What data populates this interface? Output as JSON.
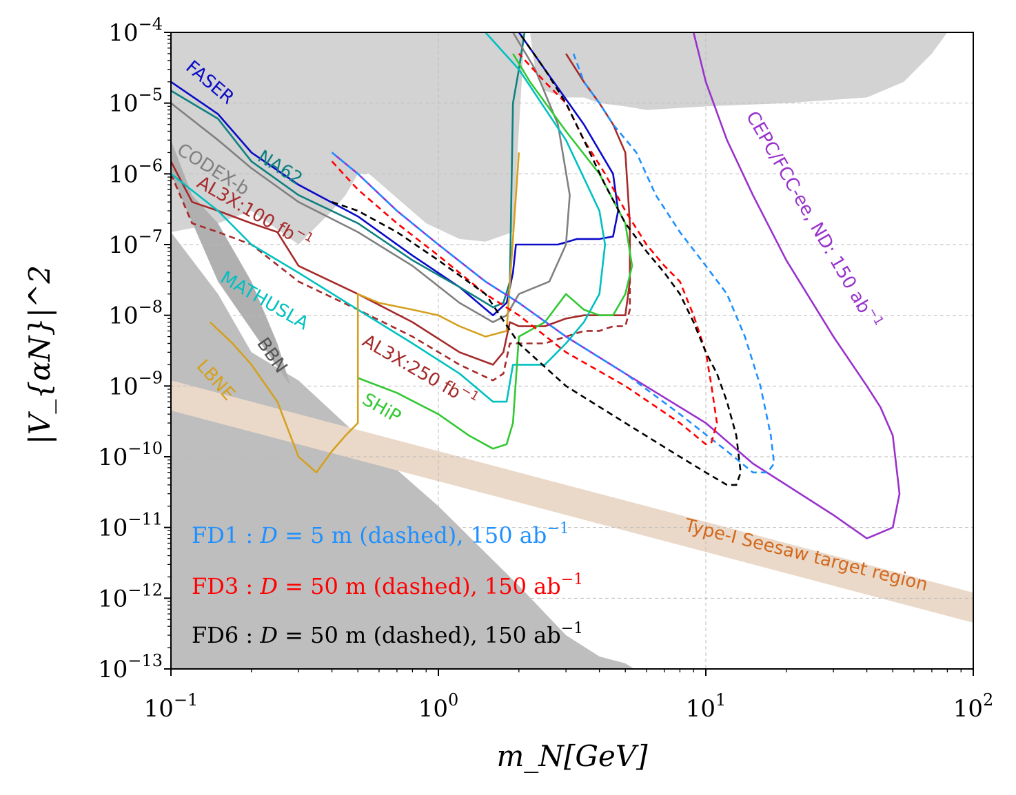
{
  "chart_data": {
    "type": "line",
    "title": "",
    "xlabel": "m_N[GeV]",
    "ylabel": "|V_{αN}|^2",
    "x_scale": "log",
    "y_scale": "log",
    "xlim": [
      0.1,
      100
    ],
    "ylim": [
      1e-13,
      0.0001
    ],
    "grid": true,
    "x_ticks": [
      {
        "base": "10",
        "exp": "−1",
        "value": 0.1
      },
      {
        "base": "10",
        "exp": "0",
        "value": 1
      },
      {
        "base": "10",
        "exp": "1",
        "value": 10
      },
      {
        "base": "10",
        "exp": "2",
        "value": 100
      }
    ],
    "y_ticks": [
      {
        "base": "10",
        "exp": "−4",
        "value": 0.0001
      },
      {
        "base": "10",
        "exp": "−5",
        "value": 1e-05
      },
      {
        "base": "10",
        "exp": "−6",
        "value": 1e-06
      },
      {
        "base": "10",
        "exp": "−7",
        "value": 1e-07
      },
      {
        "base": "10",
        "exp": "−8",
        "value": 1e-08
      },
      {
        "base": "10",
        "exp": "−9",
        "value": 1e-09
      },
      {
        "base": "10",
        "exp": "−10",
        "value": 1e-10
      },
      {
        "base": "10",
        "exp": "−11",
        "value": 1e-11
      },
      {
        "base": "10",
        "exp": "−12",
        "value": 1e-12
      },
      {
        "base": "10",
        "exp": "−13",
        "value": 1e-13
      }
    ],
    "regions": [
      {
        "name": "Excluded (upper)",
        "color": "#d3d3d3",
        "x": [
          0.1,
          0.1,
          0.15,
          0.2,
          0.3,
          0.4,
          0.45,
          0.5,
          0.55,
          0.9,
          1.2,
          1.5,
          1.9,
          2.1,
          2.2,
          2.3,
          2.5,
          3.0,
          3.5,
          4.0,
          5.0,
          6.0,
          10,
          20,
          40,
          55,
          70,
          80,
          100,
          100
        ],
        "y": [
          0.0001,
          1.5e-07,
          2e-07,
          3e-07,
          1e-07,
          3e-07,
          5e-07,
          1e-06,
          1e-06,
          2e-07,
          1.2e-07,
          1.1e-07,
          1.5e-07,
          0.0001,
          0.0001,
          3e-05,
          1.5e-05,
          1.2e-05,
          1.2e-05,
          1e-05,
          9e-06,
          8e-06,
          9e-06,
          1e-05,
          1.2e-05,
          2e-05,
          5e-05,
          0.0001,
          0.0001,
          0.0001
        ]
      },
      {
        "name": "Excluded (lower-left)",
        "color": "#bebebe",
        "x": [
          0.1,
          0.15,
          0.2,
          0.3,
          0.5,
          1.0,
          2.0,
          3.0,
          4.0,
          5.0,
          5.4,
          0.1
        ],
        "y": [
          1.5e-07,
          2e-08,
          3e-09,
          1.2e-09,
          2e-10,
          2e-11,
          1.5e-12,
          3e-13,
          1.5e-13,
          1.2e-13,
          1e-13,
          1e-13
        ]
      },
      {
        "name": "BBN",
        "color": "#b0b0b0",
        "x": [
          0.1,
          0.12,
          0.15,
          0.2,
          0.25,
          0.28,
          0.15,
          0.1
        ],
        "y": [
          3e-06,
          5e-07,
          2e-07,
          3e-08,
          4e-09,
          1e-09,
          3e-08,
          1e-06
        ]
      }
    ],
    "seesaw_band": {
      "label": "Type-I Seesaw target region",
      "color": "#ead9c9",
      "x": [
        0.1,
        100
      ],
      "y_upper": [
        1.2e-09,
        1.2e-12
      ],
      "y_lower": [
        4.5e-10,
        4.5e-13
      ]
    },
    "series": [
      {
        "name": "FASER",
        "label": "FASER",
        "color": "#0a0ac8",
        "dash": "solid",
        "x": [
          0.1,
          0.15,
          0.2,
          0.3,
          0.5,
          0.8,
          1.2,
          1.6,
          1.8,
          1.9,
          1.95,
          2.2,
          2.8,
          3.3,
          4.0,
          4.5,
          4.7,
          4.5,
          3.5,
          2.5,
          2.0
        ],
        "y": [
          2e-05,
          7e-06,
          2e-06,
          7e-07,
          2.5e-07,
          7e-08,
          2.5e-08,
          1e-08,
          1.5e-08,
          4e-08,
          1e-07,
          1e-07,
          1e-07,
          1.2e-07,
          1.2e-07,
          1.3e-07,
          3e-07,
          1e-06,
          5e-06,
          3e-05,
          0.0001
        ]
      },
      {
        "name": "NA62",
        "label": "NA62",
        "color": "#108080",
        "dash": "solid",
        "x": [
          0.1,
          0.15,
          0.2,
          0.3,
          0.5,
          0.8,
          1.2,
          1.6,
          1.75,
          1.85,
          1.9,
          2.0,
          2.1
        ],
        "y": [
          1.5e-05,
          6e-06,
          1.5e-06,
          5e-07,
          2e-07,
          6e-08,
          2.5e-08,
          1.3e-08,
          1.5e-08,
          3e-08,
          1e-05,
          3e-05,
          0.0001
        ]
      },
      {
        "name": "CODEX-b",
        "label": "CODEX-b",
        "color": "#808080",
        "dash": "solid",
        "x": [
          0.1,
          0.15,
          0.2,
          0.3,
          0.5,
          0.8,
          1.2,
          1.6,
          1.8,
          2.0,
          2.6,
          3.0,
          3.1,
          2.8,
          2.3,
          1.9
        ],
        "y": [
          1e-05,
          3e-06,
          1.2e-06,
          4e-07,
          1.5e-07,
          5e-08,
          1.5e-08,
          8e-09,
          1e-08,
          2e-08,
          3e-08,
          1e-07,
          5e-07,
          5e-06,
          3e-05,
          0.0001
        ]
      },
      {
        "name": "AL3X 100",
        "label": "AL3X:100 fb",
        "label_sup": "−1",
        "color": "#a52a2a",
        "dash": "solid",
        "x": [
          0.1,
          0.12,
          0.15,
          0.2,
          0.25,
          0.3,
          0.5,
          0.8,
          1.2,
          1.6,
          1.75,
          1.85,
          2.0,
          2.5,
          3.0,
          3.5,
          4.0,
          4.5,
          5.0,
          5.2,
          5.2,
          5.0,
          4.5,
          4.0,
          3.5,
          3.0
        ],
        "y": [
          1.5e-06,
          4e-07,
          3e-07,
          2e-07,
          1.5e-07,
          5e-08,
          2e-08,
          8e-09,
          3e-09,
          2e-09,
          3e-09,
          8e-09,
          7e-09,
          7e-09,
          9e-09,
          1e-08,
          1e-08,
          1e-08,
          1e-08,
          3e-08,
          2e-07,
          2e-06,
          5e-06,
          1e-05,
          2e-05,
          5e-05
        ]
      },
      {
        "name": "AL3X 250",
        "label": "AL3X:250 fb",
        "label_sup": "−1",
        "color": "#a52a2a",
        "dash": "dashed",
        "x": [
          0.1,
          0.12,
          0.15,
          0.2,
          0.3,
          0.5,
          0.8,
          1.2,
          1.6,
          1.75,
          1.85,
          2.0,
          2.5,
          3.0,
          3.5,
          4.0,
          4.5,
          5.0,
          5.2,
          5.2
        ],
        "y": [
          1e-06,
          2e-07,
          1.5e-07,
          1e-07,
          3e-08,
          1.2e-08,
          5e-09,
          2e-09,
          1.2e-09,
          1.5e-09,
          4e-09,
          4e-09,
          4e-09,
          5e-09,
          6e-09,
          6e-09,
          7e-09,
          7e-09,
          1.2e-08,
          8e-08
        ]
      },
      {
        "name": "MATHUSLA",
        "label": "MATHUSLA",
        "color": "#00c0c0",
        "dash": "solid",
        "x": [
          0.1,
          0.15,
          0.2,
          0.3,
          0.5,
          0.8,
          1.2,
          1.6,
          1.8,
          1.9,
          2.0,
          2.5,
          3.0,
          3.5,
          4.0,
          4.2,
          4.0,
          3.0,
          2.0,
          1.5
        ],
        "y": [
          1e-06,
          3e-07,
          1e-07,
          4e-08,
          1.2e-08,
          4e-09,
          1.5e-09,
          6e-10,
          6e-10,
          2e-09,
          2e-09,
          2e-09,
          4e-09,
          8e-09,
          2e-08,
          1e-07,
          3e-07,
          3e-06,
          3e-05,
          0.0001
        ]
      },
      {
        "name": "SHiP",
        "label": "SHiP",
        "color": "#32c832",
        "dash": "solid",
        "x": [
          0.5,
          0.7,
          1.0,
          1.3,
          1.6,
          1.8,
          1.9,
          2.0,
          2.5,
          3.0,
          3.5,
          4.0,
          4.5,
          5.0,
          5.3,
          5.0,
          4.0,
          3.0,
          2.2,
          1.9
        ],
        "y": [
          1.3e-09,
          8e-10,
          4e-10,
          2e-10,
          1.3e-10,
          1.5e-10,
          3e-10,
          5e-09,
          8e-09,
          2e-08,
          1.2e-08,
          1e-08,
          1e-08,
          2e-08,
          5e-08,
          2e-07,
          1e-06,
          4e-06,
          2e-05,
          5e-05
        ]
      },
      {
        "name": "LBNE",
        "label": "LBNE",
        "color": "#d4a020",
        "dash": "solid",
        "x": [
          0.14,
          0.17,
          0.2,
          0.25,
          0.3,
          0.35,
          0.4,
          0.45,
          0.5,
          0.5,
          0.6,
          0.8,
          1.0,
          1.2,
          1.5,
          1.8,
          2.0
        ],
        "y": [
          8e-09,
          4e-09,
          2e-09,
          6e-10,
          1e-10,
          6e-11,
          1.2e-10,
          2e-10,
          3e-10,
          2e-08,
          1.5e-08,
          1.2e-08,
          1e-08,
          7e-09,
          5e-09,
          6e-09,
          2e-06
        ]
      },
      {
        "name": "CEPC/FCC-ee ND",
        "label": "CEPC/FCC-ee, ND: 150 ab",
        "label_sup": "−1",
        "color": "#9932cc",
        "dash": "solid",
        "x": [
          0.4,
          0.5,
          0.7,
          1.0,
          1.5,
          2.0,
          3.0,
          5.0,
          10,
          15,
          20,
          30,
          40,
          50,
          53,
          50,
          45,
          40,
          30,
          20,
          15,
          12,
          10,
          9
        ],
        "y": [
          2e-06,
          1e-06,
          3e-07,
          1e-07,
          3e-08,
          1.5e-08,
          5e-09,
          1.5e-09,
          3e-10,
          8e-11,
          4e-11,
          1.5e-11,
          7e-12,
          1e-11,
          3e-11,
          2e-10,
          5e-10,
          1e-09,
          5e-09,
          6e-08,
          5e-07,
          3e-06,
          2e-05,
          0.0001
        ]
      },
      {
        "name": "FD1",
        "label": "FD1 : D = 5 m (dashed), 150 ab",
        "color": "#1e90ff",
        "dash": "dashed",
        "x": [
          0.4,
          0.5,
          0.7,
          1.0,
          1.5,
          2.0,
          3.0,
          5.0,
          8.0,
          12,
          15,
          17,
          18,
          17.5,
          16,
          14,
          12,
          10,
          8,
          6.5,
          5.5,
          4.5,
          4.0,
          3.5,
          3.2
        ],
        "y": [
          2e-06,
          1e-06,
          3e-07,
          1e-07,
          3e-08,
          1.5e-08,
          5e-09,
          1.5e-09,
          4e-10,
          1.2e-10,
          6e-11,
          6e-11,
          8e-11,
          2e-10,
          1e-09,
          5e-09,
          2e-08,
          5e-08,
          1.5e-07,
          5e-07,
          2e-06,
          5e-06,
          1e-05,
          2e-05,
          5e-05
        ]
      },
      {
        "name": "FD3",
        "label": "FD3 : D = 50 m (dashed), 150 ab",
        "color": "#ff0000",
        "dash": "dashed",
        "x": [
          0.4,
          0.5,
          0.7,
          1.0,
          1.5,
          2.0,
          3.0,
          5.0,
          8.0,
          10,
          10.5,
          11,
          10.5,
          10,
          9,
          8,
          7,
          6,
          5,
          4.2,
          3.5,
          3.0,
          2.5,
          2.0
        ],
        "y": [
          1.5e-06,
          6e-07,
          2e-07,
          7e-08,
          2e-08,
          1e-08,
          3e-09,
          1e-09,
          3e-10,
          1.5e-10,
          1.6e-10,
          3e-10,
          1e-09,
          3e-09,
          1e-08,
          3e-08,
          5e-08,
          1e-07,
          3e-07,
          1e-06,
          3e-06,
          1e-05,
          2e-05,
          5e-05
        ]
      },
      {
        "name": "FD6",
        "label": "FD6 : D = 50 m (dashed), 150 ab",
        "color": "#000000",
        "dash": "dashed",
        "x": [
          0.4,
          0.5,
          0.7,
          1.0,
          1.5,
          2.0,
          3.0,
          5.0,
          8.0,
          10,
          12,
          13,
          13.5,
          13,
          12,
          11,
          10,
          9,
          8,
          7,
          6,
          5,
          4.2,
          3.5,
          3.0,
          2.5,
          2.0
        ],
        "y": [
          4e-07,
          3e-07,
          1.5e-07,
          6e-08,
          2e-08,
          4e-09,
          1e-09,
          3e-10,
          1e-10,
          6e-11,
          4e-11,
          4e-11,
          6e-11,
          2e-10,
          6e-10,
          1.5e-09,
          3e-09,
          8e-09,
          2e-08,
          4e-08,
          8e-08,
          2e-07,
          7e-07,
          3e-06,
          1e-05,
          3e-05,
          0.0001
        ]
      }
    ],
    "region_labels": [
      {
        "text": "BBN",
        "color": "#555555"
      },
      {
        "text": "Type-I Seesaw target region",
        "color": "#d2691e"
      }
    ],
    "legend_lines": [
      {
        "prefix": "FD1 : ",
        "var": "D",
        "rest": " =   5 m (dashed), 150 ab",
        "sup": "−1",
        "color": "#1e90ff"
      },
      {
        "prefix": "FD3 : ",
        "var": "D",
        "rest": " = 50 m (dashed), 150 ab",
        "sup": "−1",
        "color": "#ff0000"
      },
      {
        "prefix": "FD6 : ",
        "var": "D",
        "rest": " = 50 m (dashed), 150 ab",
        "sup": "−1",
        "color": "#000000"
      }
    ]
  }
}
